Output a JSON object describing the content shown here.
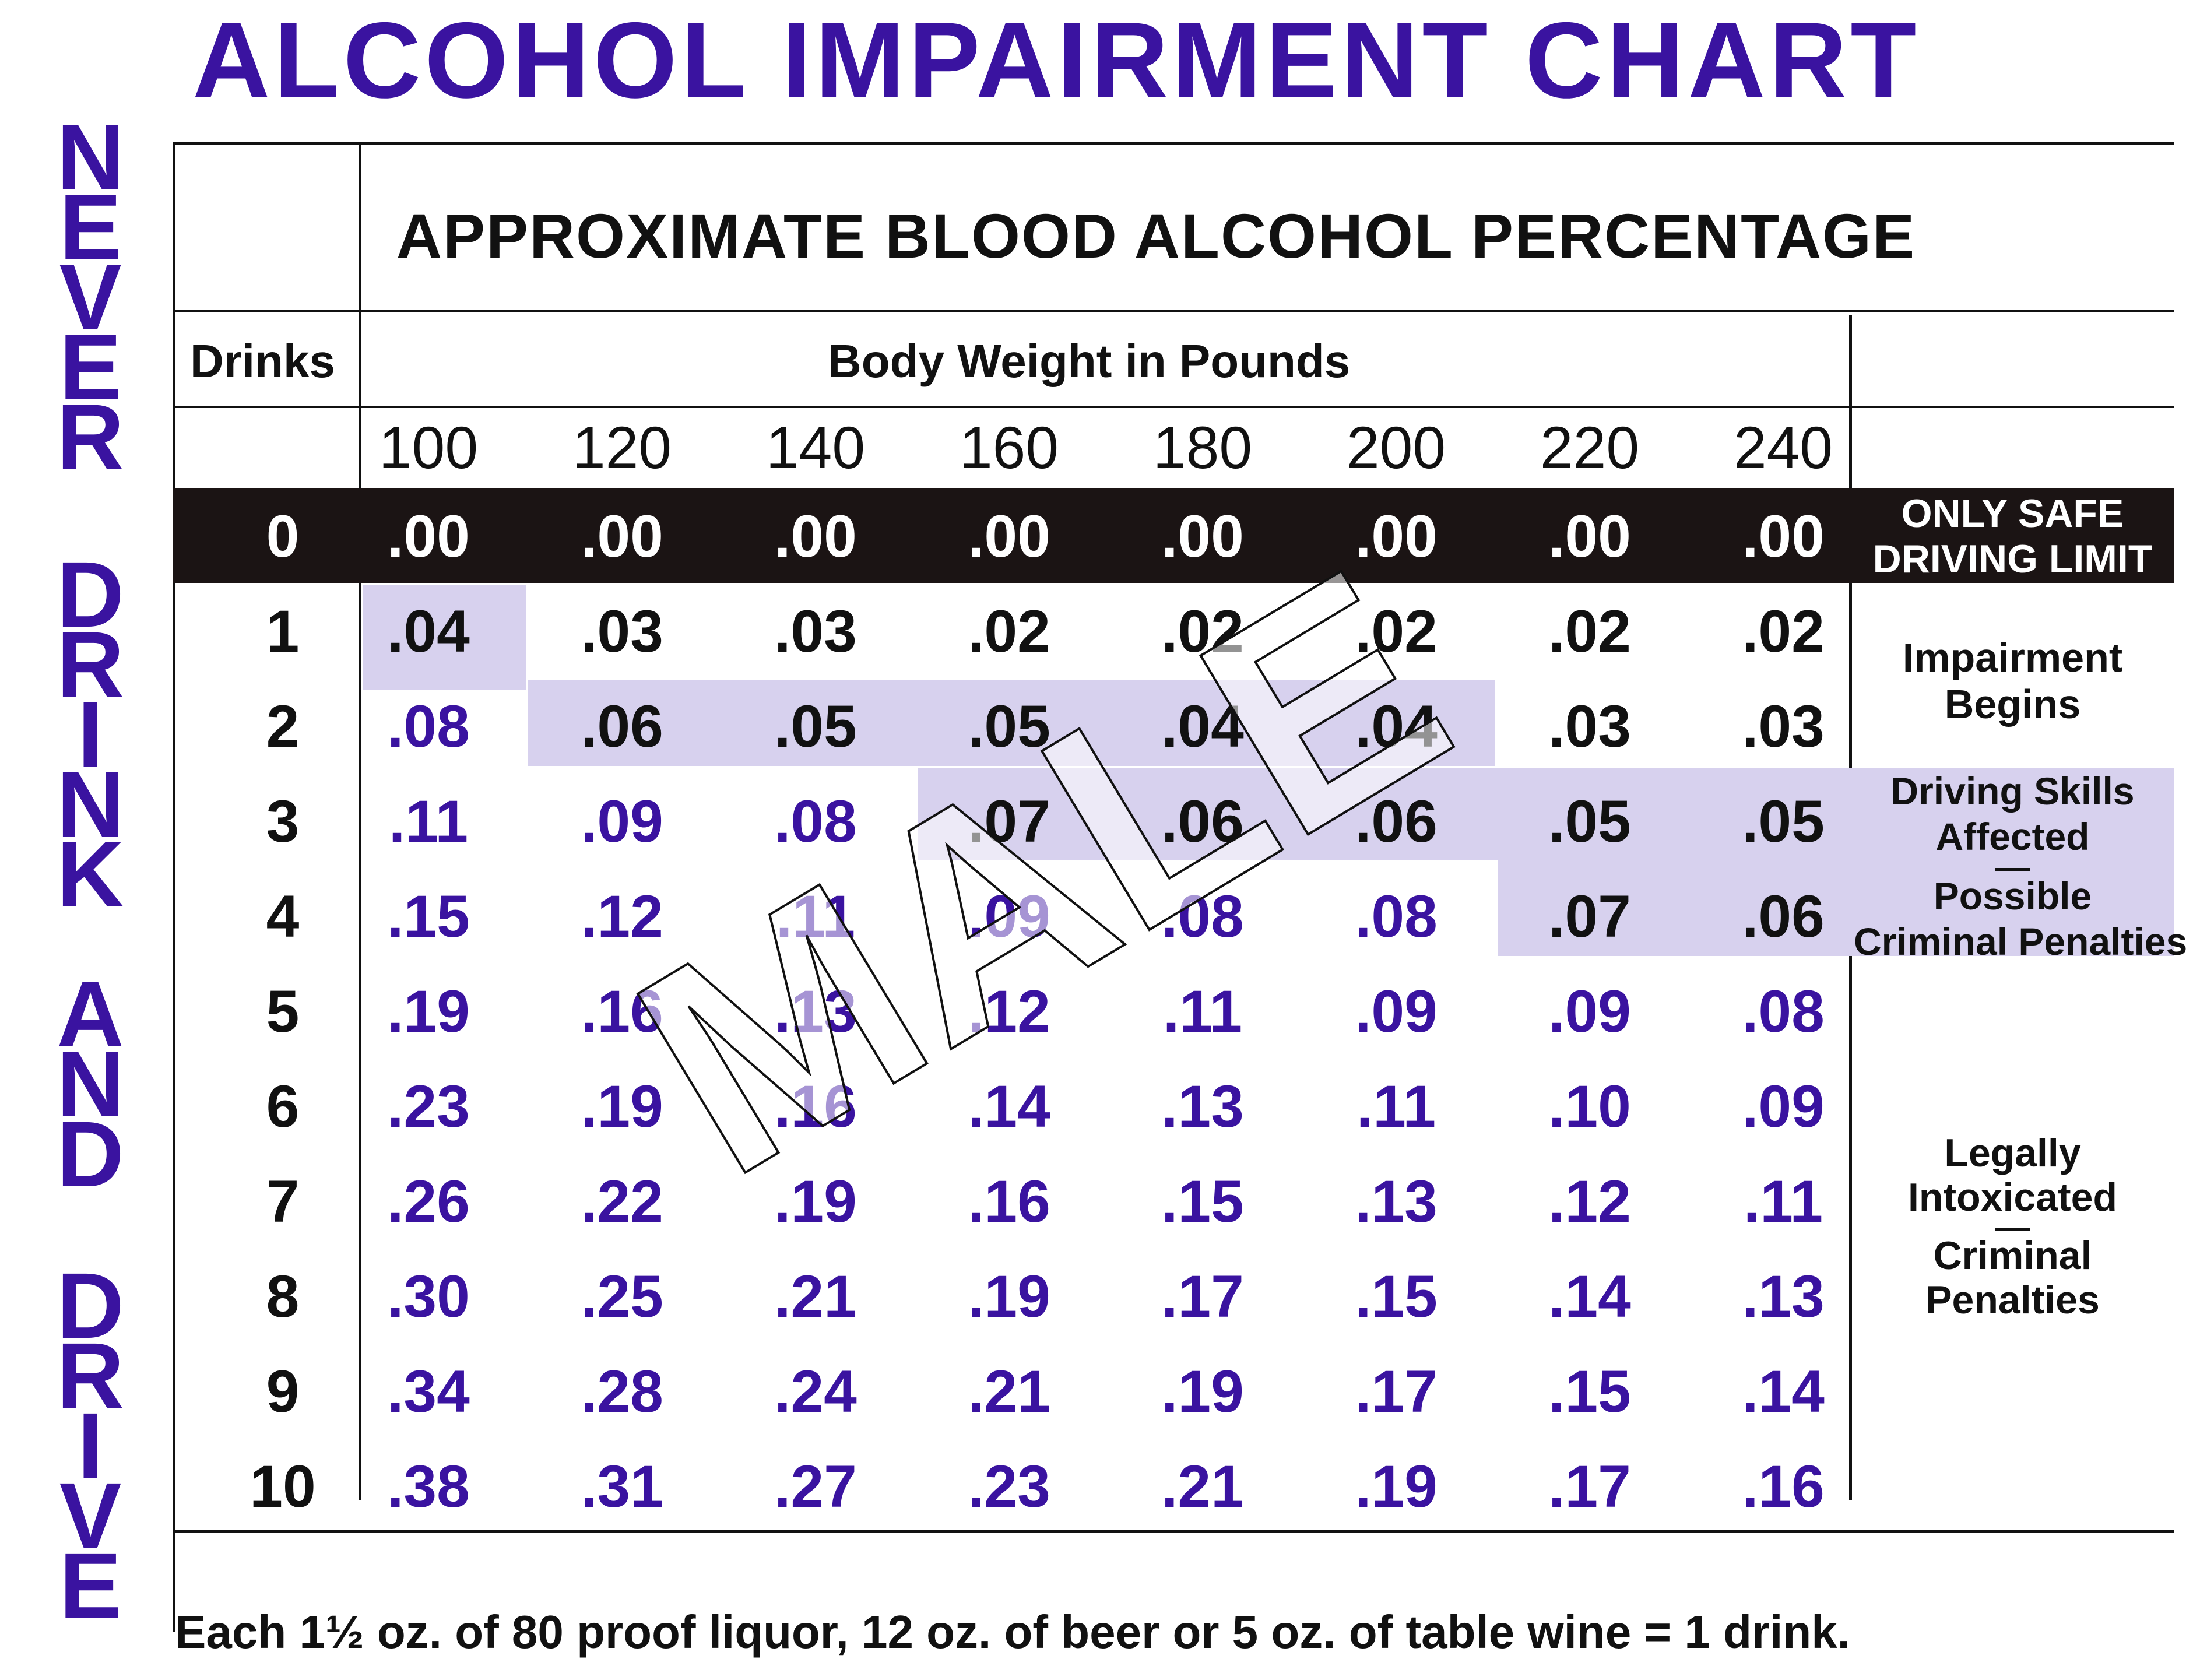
{
  "page": {
    "title": "ALCOHOL IMPAIRMENT CHART",
    "side_text": [
      "NEVER",
      "DRINK",
      "AND",
      "DRIVE"
    ],
    "watermark": "MALE",
    "footnote": "Each 1½ oz. of 80 proof liquor, 12 oz. of beer or 5 oz. of table wine = 1 drink."
  },
  "colors": {
    "accent": "#3a13a0",
    "highlight": "#d7d1ee",
    "band": "#1b1414",
    "text": "#111111"
  },
  "chart_data": {
    "type": "table",
    "title": "APPROXIMATE BLOOD ALCOHOL PERCENTAGE",
    "row_header": "Drinks",
    "column_group_label": "Body Weight in Pounds",
    "columns": [
      "100",
      "120",
      "140",
      "160",
      "180",
      "200",
      "220",
      "240"
    ],
    "rows": [
      {
        "drinks": "0",
        "values": [
          ".00",
          ".00",
          ".00",
          ".00",
          ".00",
          ".00",
          ".00",
          ".00"
        ]
      },
      {
        "drinks": "1",
        "values": [
          ".04",
          ".03",
          ".03",
          ".02",
          ".02",
          ".02",
          ".02",
          ".02"
        ]
      },
      {
        "drinks": "2",
        "values": [
          ".08",
          ".06",
          ".05",
          ".05",
          ".04",
          ".04",
          ".03",
          ".03"
        ]
      },
      {
        "drinks": "3",
        "values": [
          ".11",
          ".09",
          ".08",
          ".07",
          ".06",
          ".06",
          ".05",
          ".05"
        ]
      },
      {
        "drinks": "4",
        "values": [
          ".15",
          ".12",
          ".11",
          ".09",
          ".08",
          ".08",
          ".07",
          ".06"
        ]
      },
      {
        "drinks": "5",
        "values": [
          ".19",
          ".16",
          ".13",
          ".12",
          ".11",
          ".09",
          ".09",
          ".08"
        ]
      },
      {
        "drinks": "6",
        "values": [
          ".23",
          ".19",
          ".16",
          ".14",
          ".13",
          ".11",
          ".10",
          ".09"
        ]
      },
      {
        "drinks": "7",
        "values": [
          ".26",
          ".22",
          ".19",
          ".16",
          ".15",
          ".13",
          ".12",
          ".11"
        ]
      },
      {
        "drinks": "8",
        "values": [
          ".30",
          ".25",
          ".21",
          ".19",
          ".17",
          ".15",
          ".14",
          ".13"
        ]
      },
      {
        "drinks": "9",
        "values": [
          ".34",
          ".28",
          ".24",
          ".21",
          ".19",
          ".17",
          ".15",
          ".14"
        ]
      },
      {
        "drinks": "10",
        "values": [
          ".38",
          ".31",
          ".27",
          ".23",
          ".21",
          ".19",
          ".17",
          ".16"
        ]
      }
    ],
    "zones": [
      {
        "lines": [
          "ONLY SAFE",
          "DRIVING LIMIT"
        ]
      },
      {
        "lines": [
          "Impairment",
          "Begins"
        ]
      },
      {
        "lines": [
          "Driving Skills",
          "Affected",
          "Possible",
          "Criminal Penalties"
        ]
      },
      {
        "lines": [
          "Legally",
          "Intoxicated",
          "Criminal",
          "Penalties"
        ]
      }
    ]
  }
}
